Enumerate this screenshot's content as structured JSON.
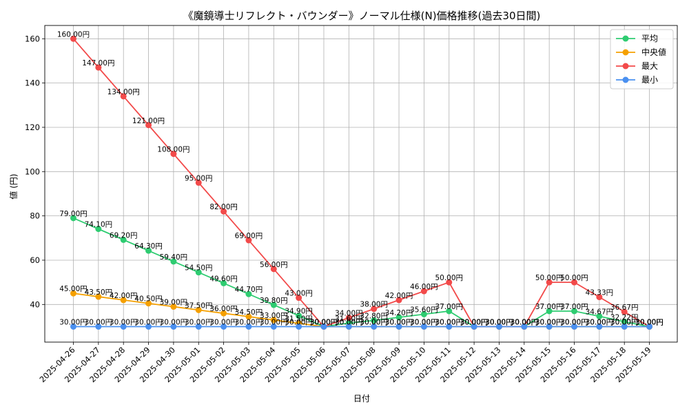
{
  "chart_data": {
    "type": "line",
    "title": "《魔鏡導士リフレクト・バウンダー》ノーマル仕様(N)価格推移(過去30日間)",
    "xlabel": "日付",
    "ylabel": "値 (円)",
    "ylim": [
      23,
      166
    ],
    "yticks": [
      40,
      60,
      80,
      100,
      120,
      140,
      160
    ],
    "grid": true,
    "legend_position": "top-right",
    "label_suffix": "円",
    "categories": [
      "2025-04-26",
      "2025-04-27",
      "2025-04-28",
      "2025-04-29",
      "2025-04-30",
      "2025-05-01",
      "2025-05-02",
      "2025-05-03",
      "2025-05-04",
      "2025-05-05",
      "2025-05-06",
      "2025-05-07",
      "2025-05-08",
      "2025-05-09",
      "2025-05-10",
      "2025-05-11",
      "2025-05-12",
      "2025-05-13",
      "2025-05-14",
      "2025-05-15",
      "2025-05-16",
      "2025-05-17",
      "2025-05-18",
      "2025-05-19"
    ],
    "series": [
      {
        "name": "平均",
        "color": "#2ecc71",
        "values": [
          79.0,
          74.1,
          69.2,
          64.3,
          59.4,
          54.5,
          49.6,
          44.7,
          39.8,
          34.9,
          30.0,
          31.6,
          32.8,
          34.2,
          35.6,
          37.0,
          30.0,
          30.0,
          30.0,
          37.0,
          37.0,
          34.67,
          32.22,
          30.0
        ]
      },
      {
        "name": "中央値",
        "color": "#f5a000",
        "values": [
          45.0,
          43.5,
          42.0,
          40.5,
          39.0,
          37.5,
          36.0,
          34.5,
          33.0,
          31.5,
          30.0,
          30.0,
          30.0,
          30.0,
          30.0,
          30.0,
          30.0,
          30.0,
          30.0,
          30.0,
          30.0,
          30.0,
          30.0,
          30.0
        ]
      },
      {
        "name": "最大",
        "color": "#f24a4a",
        "values": [
          160.0,
          147.0,
          134.0,
          121.0,
          108.0,
          95.0,
          82.0,
          69.0,
          56.0,
          43.0,
          30.0,
          34.0,
          38.0,
          42.0,
          46.0,
          50.0,
          30.0,
          30.0,
          30.0,
          50.0,
          50.0,
          43.33,
          36.67,
          30.0
        ]
      },
      {
        "name": "最小",
        "color": "#4a90f0",
        "values": [
          30.0,
          30.0,
          30.0,
          30.0,
          30.0,
          30.0,
          30.0,
          30.0,
          30.0,
          30.0,
          30.0,
          30.0,
          30.0,
          30.0,
          30.0,
          30.0,
          30.0,
          30.0,
          30.0,
          30.0,
          30.0,
          30.0,
          30.0,
          30.0
        ]
      }
    ]
  }
}
